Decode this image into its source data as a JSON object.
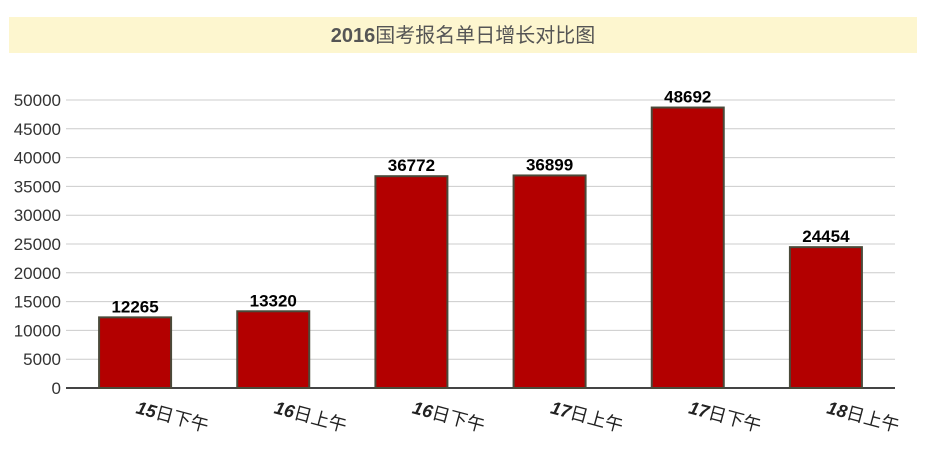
{
  "chart_data": {
    "type": "bar",
    "title_bold": "2016",
    "title_rest": "国考报名单日增长对比图",
    "categories": [
      "15日下午",
      "16日上午",
      "16日下午",
      "17日上午",
      "17日下午",
      "18日上午"
    ],
    "category_numbers": [
      "15",
      "16",
      "16",
      "17",
      "17",
      "18"
    ],
    "category_suffixes": [
      "日下午",
      "日上午",
      "日下午",
      "日上午",
      "日下午",
      "日上午"
    ],
    "values": [
      12265,
      13320,
      36772,
      36899,
      48692,
      24454
    ],
    "ylim": [
      0,
      50000
    ],
    "yticks": [
      0,
      5000,
      10000,
      15000,
      20000,
      25000,
      30000,
      35000,
      40000,
      45000,
      50000
    ],
    "grid": true,
    "colors": {
      "bar": "#b30000",
      "bar_border": "#4a4a3a",
      "title_bg": "#fdf6cf",
      "title_text": "#555555",
      "grid": "#cccccc"
    }
  }
}
